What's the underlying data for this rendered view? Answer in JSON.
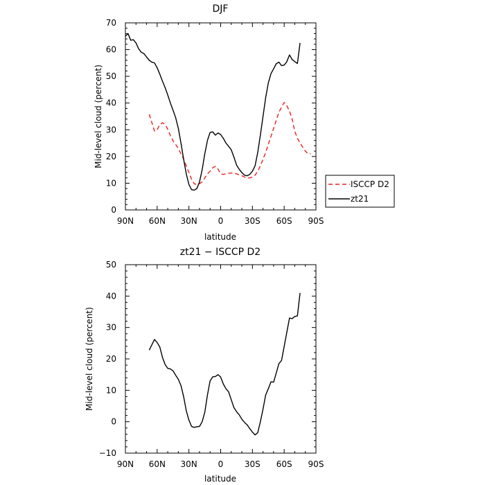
{
  "chart_data": [
    {
      "type": "line",
      "title": "DJF",
      "xlabel": "latitude",
      "ylabel": "Mid-level cloud (percent)",
      "xlim": [
        -90,
        90
      ],
      "ylim": [
        0,
        70
      ],
      "x_ticks": [
        -90,
        -60,
        -30,
        0,
        30,
        60,
        90
      ],
      "x_tick_labels": [
        "90N",
        "60N",
        "30N",
        "0",
        "30S",
        "60S",
        "90S"
      ],
      "y_ticks": [
        0,
        10,
        20,
        30,
        40,
        50,
        60,
        70
      ],
      "y_tick_labels": [
        "0",
        "10",
        "20",
        "30",
        "40",
        "50",
        "60",
        "70"
      ],
      "legend": "right",
      "series": [
        {
          "name": "ISCCP D2",
          "color": "#e8201e",
          "dashed": true,
          "points": [
            [
              -67.5,
              35.8
            ],
            [
              -62.5,
              29.5
            ],
            [
              -60,
              30.0
            ],
            [
              -57.5,
              32.0
            ],
            [
              -55,
              32.6
            ],
            [
              -52.5,
              32.0
            ],
            [
              -50,
              30.2
            ],
            [
              -47.5,
              27.8
            ],
            [
              -45,
              25.8
            ],
            [
              -42.5,
              24.5
            ],
            [
              -40,
              23.0
            ],
            [
              -37.5,
              21.0
            ],
            [
              -35,
              19.0
            ],
            [
              -32.5,
              16.5
            ],
            [
              -30,
              14.0
            ],
            [
              -27.5,
              11.5
            ],
            [
              -25,
              9.8
            ],
            [
              -22.5,
              9.5
            ],
            [
              -20,
              9.8
            ],
            [
              -17.5,
              10.5
            ],
            [
              -15,
              12.0
            ],
            [
              -12.5,
              13.5
            ],
            [
              -10,
              14.5
            ],
            [
              -7.5,
              15.8
            ],
            [
              -5,
              16.3
            ],
            [
              -2.5,
              15.3
            ],
            [
              0,
              13.5
            ],
            [
              2.5,
              13.3
            ],
            [
              5,
              13.5
            ],
            [
              7.5,
              13.7
            ],
            [
              10,
              13.8
            ],
            [
              12.5,
              13.8
            ],
            [
              15,
              13.5
            ],
            [
              17.5,
              13.1
            ],
            [
              20,
              12.8
            ],
            [
              22.5,
              12.3
            ],
            [
              25,
              12.0
            ],
            [
              27.5,
              12.0
            ],
            [
              30,
              12.3
            ],
            [
              32.5,
              13.0
            ],
            [
              35,
              14.5
            ],
            [
              37.5,
              16.5
            ],
            [
              40,
              19.0
            ],
            [
              42.5,
              21.5
            ],
            [
              45,
              24.5
            ],
            [
              47.5,
              27.5
            ],
            [
              50,
              30.5
            ],
            [
              52.5,
              33.5
            ],
            [
              55,
              36.5
            ],
            [
              57.5,
              38.5
            ],
            [
              60,
              40.2
            ],
            [
              62.5,
              39.0
            ],
            [
              65,
              37.0
            ],
            [
              67.5,
              34.0
            ],
            [
              70,
              29.5
            ],
            [
              72.5,
              26.8
            ],
            [
              75,
              25.0
            ],
            [
              77.5,
              23.5
            ],
            [
              80,
              22.0
            ],
            [
              82.5,
              21.0
            ],
            [
              85,
              21.0
            ]
          ]
        },
        {
          "name": "zt21",
          "color": "#000000",
          "dashed": false,
          "points": [
            [
              -90,
              65.0
            ],
            [
              -87.5,
              66.0
            ],
            [
              -85,
              63.5
            ],
            [
              -82.5,
              63.7
            ],
            [
              -80,
              62.5
            ],
            [
              -77.5,
              60.3
            ],
            [
              -75,
              59.0
            ],
            [
              -72.5,
              58.5
            ],
            [
              -70,
              57.2
            ],
            [
              -67.5,
              56.0
            ],
            [
              -65,
              55.3
            ],
            [
              -62.5,
              55.0
            ],
            [
              -60,
              53.2
            ],
            [
              -57.5,
              50.8
            ],
            [
              -55,
              48.2
            ],
            [
              -52.5,
              45.8
            ],
            [
              -50,
              43.0
            ],
            [
              -47.5,
              40.0
            ],
            [
              -45,
              37.3
            ],
            [
              -42.5,
              34.5
            ],
            [
              -40,
              30.5
            ],
            [
              -37.5,
              25.0
            ],
            [
              -35,
              19.0
            ],
            [
              -32.5,
              13.5
            ],
            [
              -30,
              9.5
            ],
            [
              -27.5,
              7.6
            ],
            [
              -25,
              7.4
            ],
            [
              -22.5,
              8.0
            ],
            [
              -20,
              10.5
            ],
            [
              -17.5,
              15.0
            ],
            [
              -15,
              21.0
            ],
            [
              -12.5,
              26.0
            ],
            [
              -10,
              29.0
            ],
            [
              -7.5,
              29.2
            ],
            [
              -5,
              28.0
            ],
            [
              -2.5,
              28.8
            ],
            [
              0,
              28.2
            ],
            [
              2.5,
              26.8
            ],
            [
              5,
              25.0
            ],
            [
              7.5,
              23.8
            ],
            [
              10,
              22.5
            ],
            [
              12.5,
              19.8
            ],
            [
              15,
              16.8
            ],
            [
              17.5,
              15.2
            ],
            [
              20,
              14.0
            ],
            [
              22.5,
              13.0
            ],
            [
              25,
              12.8
            ],
            [
              27.5,
              13.3
            ],
            [
              30,
              14.5
            ],
            [
              32.5,
              16.5
            ],
            [
              35,
              21.5
            ],
            [
              37.5,
              28.0
            ],
            [
              40,
              35.0
            ],
            [
              42.5,
              42.0
            ],
            [
              45,
              47.5
            ],
            [
              47.5,
              51.0
            ],
            [
              50,
              52.8
            ],
            [
              52.5,
              54.7
            ],
            [
              55,
              55.3
            ],
            [
              57.5,
              54.0
            ],
            [
              60,
              54.2
            ],
            [
              62.5,
              55.5
            ],
            [
              65,
              58.0
            ],
            [
              67.5,
              56.3
            ],
            [
              70,
              55.5
            ],
            [
              72.5,
              54.8
            ],
            [
              75,
              62.5
            ]
          ]
        }
      ]
    },
    {
      "type": "line",
      "title": "zt21 − ISCCP D2",
      "xlabel": "latitude",
      "ylabel": "Mid-level cloud (percent)",
      "xlim": [
        -90,
        90
      ],
      "ylim": [
        -10,
        50
      ],
      "x_ticks": [
        -90,
        -60,
        -30,
        0,
        30,
        60,
        90
      ],
      "x_tick_labels": [
        "90N",
        "60N",
        "30N",
        "0",
        "30S",
        "60S",
        "90S"
      ],
      "y_ticks": [
        -10,
        0,
        10,
        20,
        30,
        40,
        50
      ],
      "y_tick_labels": [
        "−10",
        "0",
        "10",
        "20",
        "30",
        "40",
        "50"
      ],
      "series": [
        {
          "color": "#000000",
          "dashed": false,
          "points": [
            [
              -67.5,
              22.8
            ],
            [
              -65,
              24.5
            ],
            [
              -62.5,
              26.2
            ],
            [
              -60,
              25.2
            ],
            [
              -57.5,
              23.8
            ],
            [
              -55,
              20.5
            ],
            [
              -52.5,
              18.2
            ],
            [
              -50,
              17.0
            ],
            [
              -47.5,
              16.8
            ],
            [
              -45,
              16.2
            ],
            [
              -42.5,
              14.8
            ],
            [
              -40,
              13.5
            ],
            [
              -37.5,
              11.5
            ],
            [
              -35,
              8.0
            ],
            [
              -32.5,
              3.5
            ],
            [
              -30,
              0.5
            ],
            [
              -27.5,
              -1.5
            ],
            [
              -25,
              -1.8
            ],
            [
              -22.5,
              -1.6
            ],
            [
              -20,
              -1.5
            ],
            [
              -17.5,
              0.0
            ],
            [
              -15,
              3.0
            ],
            [
              -12.5,
              8.5
            ],
            [
              -10,
              13.0
            ],
            [
              -7.5,
              14.3
            ],
            [
              -5,
              14.4
            ],
            [
              -2.5,
              15.0
            ],
            [
              0,
              14.2
            ],
            [
              2.5,
              12.0
            ],
            [
              5,
              10.5
            ],
            [
              7.5,
              9.5
            ],
            [
              10,
              7.0
            ],
            [
              12.5,
              4.5
            ],
            [
              15,
              3.2
            ],
            [
              17.5,
              2.2
            ],
            [
              20,
              0.8
            ],
            [
              22.5,
              -0.2
            ],
            [
              25,
              -1.0
            ],
            [
              27.5,
              -2.2
            ],
            [
              30,
              -3.3
            ],
            [
              32.5,
              -4.2
            ],
            [
              35,
              -3.5
            ],
            [
              37.5,
              0.0
            ],
            [
              40,
              4.0
            ],
            [
              42.5,
              8.5
            ],
            [
              45,
              10.5
            ],
            [
              47.5,
              12.7
            ],
            [
              50,
              12.6
            ],
            [
              52.5,
              15.5
            ],
            [
              55,
              18.5
            ],
            [
              57.5,
              19.5
            ],
            [
              60,
              24.0
            ],
            [
              62.5,
              28.5
            ],
            [
              65,
              33.0
            ],
            [
              67.5,
              32.8
            ],
            [
              70,
              33.5
            ],
            [
              72.5,
              33.7
            ],
            [
              75,
              41.0
            ]
          ]
        }
      ]
    }
  ]
}
